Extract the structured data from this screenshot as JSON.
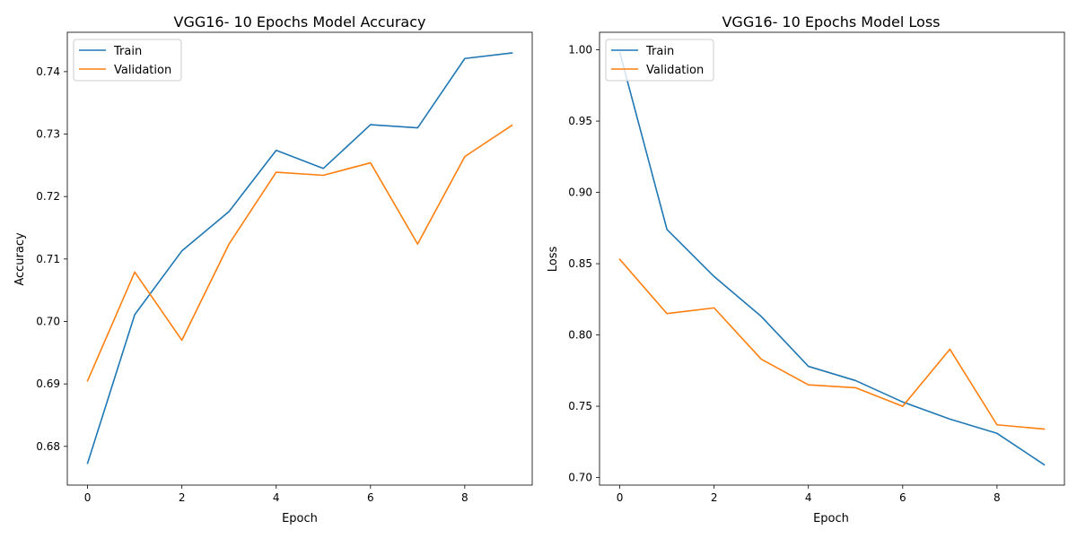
{
  "chart_data": [
    {
      "type": "line",
      "title": "VGG16- 10 Epochs Model Accuracy",
      "xlabel": "Epoch",
      "ylabel": "Accuracy",
      "xlim": [
        -0.43,
        9.43
      ],
      "ylim": [
        0.6738,
        0.7463
      ],
      "xticks": [
        0,
        2,
        4,
        6,
        8
      ],
      "yticks": [
        0.68,
        0.69,
        0.7,
        0.71,
        0.72,
        0.73,
        0.74
      ],
      "ytick_labels": [
        "0.68",
        "0.69",
        "0.70",
        "0.71",
        "0.72",
        "0.73",
        "0.74"
      ],
      "legend_position": "top-left",
      "x": [
        0,
        1,
        2,
        3,
        4,
        5,
        6,
        7,
        8,
        9
      ],
      "series": [
        {
          "name": "Train",
          "color": "#1f77b4",
          "values": [
            0.6773,
            0.7011,
            0.7113,
            0.7176,
            0.7274,
            0.7245,
            0.7315,
            0.731,
            0.7421,
            0.743
          ]
        },
        {
          "name": "Validation",
          "color": "#ff7f0e",
          "values": [
            0.6905,
            0.7079,
            0.697,
            0.7124,
            0.7239,
            0.7234,
            0.7254,
            0.7124,
            0.7264,
            0.7314
          ]
        }
      ]
    },
    {
      "type": "line",
      "title": "VGG16- 10 Epochs Model Loss",
      "xlabel": "Epoch",
      "ylabel": "Loss",
      "xlim": [
        -0.43,
        9.43
      ],
      "ylim": [
        0.6947,
        1.0123
      ],
      "xticks": [
        0,
        2,
        4,
        6,
        8
      ],
      "yticks": [
        0.7,
        0.75,
        0.8,
        0.85,
        0.9,
        0.95,
        1.0
      ],
      "ytick_labels": [
        "0.70",
        "0.75",
        "0.80",
        "0.85",
        "0.90",
        "0.95",
        "1.00"
      ],
      "legend_position": "top-left",
      "x": [
        0,
        1,
        2,
        3,
        4,
        5,
        6,
        7,
        8,
        9
      ],
      "series": [
        {
          "name": "Train",
          "color": "#1f77b4",
          "values": [
            0.998,
            0.874,
            0.841,
            0.813,
            0.778,
            0.768,
            0.753,
            0.741,
            0.731,
            0.709
          ]
        },
        {
          "name": "Validation",
          "color": "#ff7f0e",
          "values": [
            0.853,
            0.815,
            0.819,
            0.783,
            0.765,
            0.763,
            0.75,
            0.79,
            0.737,
            0.734
          ]
        }
      ]
    }
  ]
}
